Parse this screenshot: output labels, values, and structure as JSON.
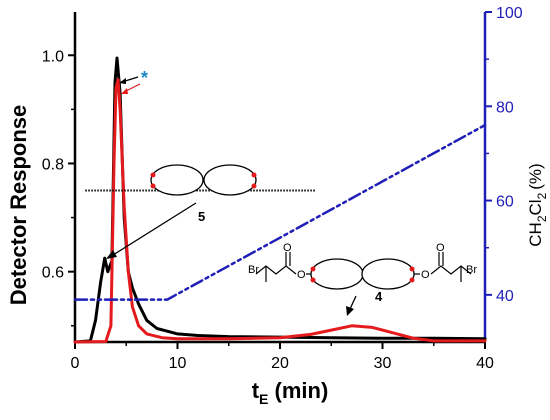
{
  "chart_data": {
    "type": "line",
    "xlabel": "t",
    "xlabel_sub": "E",
    "xlabel_unit": " (min)",
    "ylabel": "Detector Response",
    "y2label_parts": [
      "CH",
      "2",
      "Cl",
      "2",
      "(%)"
    ],
    "xlim": [
      0,
      40
    ],
    "ylim": [
      0.47,
      1.08
    ],
    "y2lim": [
      30,
      100
    ],
    "x_ticks": [
      0,
      10,
      20,
      30,
      40
    ],
    "y_ticks": [
      0.6,
      0.8,
      1.0
    ],
    "y_tick_labels": [
      "0.6",
      "0.8",
      "1.0"
    ],
    "y2_ticks": [
      40,
      60,
      80,
      100
    ],
    "grid": false,
    "legend": "none",
    "series": [
      {
        "color": "#000000",
        "axis": "left",
        "x": [
          0,
          1.5,
          2.0,
          2.5,
          2.9,
          3.2,
          3.6,
          3.9,
          4.1,
          4.4,
          4.8,
          5.2,
          5.6,
          6.2,
          7.0,
          8.0,
          9.0,
          10.0,
          12,
          15,
          20,
          25,
          30,
          35,
          40
        ],
        "y": [
          0.47,
          0.472,
          0.51,
          0.58,
          0.625,
          0.6,
          0.62,
          0.95,
          0.995,
          0.93,
          0.7,
          0.6,
          0.57,
          0.54,
          0.51,
          0.495,
          0.49,
          0.485,
          0.482,
          0.48,
          0.479,
          0.478,
          0.477,
          0.477,
          0.476
        ]
      },
      {
        "color": "#e41a1c",
        "axis": "left",
        "x": [
          0,
          3.0,
          3.5,
          3.8,
          4.0,
          4.2,
          4.4,
          4.8,
          5.2,
          5.6,
          6.2,
          7.0,
          8.5,
          10,
          15,
          20,
          23,
          25,
          27,
          29,
          31,
          33,
          35,
          40
        ],
        "y": [
          0.47,
          0.471,
          0.5,
          0.8,
          0.94,
          0.955,
          0.9,
          0.72,
          0.6,
          0.535,
          0.5,
          0.485,
          0.478,
          0.476,
          0.476,
          0.478,
          0.484,
          0.492,
          0.5,
          0.497,
          0.487,
          0.477,
          0.472,
          0.472
        ]
      },
      {
        "color": "#1f1fb8",
        "axis": "right",
        "dashed": true,
        "x": [
          0,
          9,
          40
        ],
        "y": [
          39,
          39,
          76
        ]
      },
      {
        "color": "#000000",
        "axis": "left",
        "dotted_baseline": true,
        "x": [
          1,
          23.5
        ],
        "y": [
          0.75,
          0.75
        ]
      }
    ],
    "annotations": {
      "asterisk": "*",
      "label_5": "5",
      "label_4": "4",
      "br": "Br",
      "o": "O"
    }
  }
}
